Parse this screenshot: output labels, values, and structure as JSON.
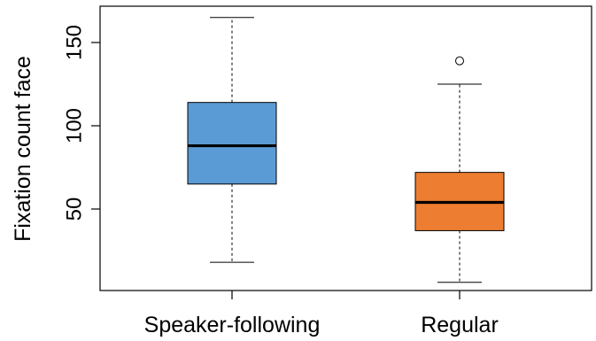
{
  "chart_data": {
    "type": "boxplot",
    "title": "",
    "xlabel": "",
    "ylabel": "Fixation count face",
    "ylim": [
      0,
      172
    ],
    "yticks": [
      50,
      100,
      150
    ],
    "grid": false,
    "categories": [
      "Speaker-following",
      "Regular"
    ],
    "boxes": [
      {
        "category": "Speaker-following",
        "color": "#5b9bd5",
        "whisker_low": 18,
        "q1": 65,
        "median": 88,
        "q3": 114,
        "whisker_high": 165,
        "outliers": []
      },
      {
        "category": "Regular",
        "color": "#ed7d31",
        "whisker_low": 6,
        "q1": 37,
        "median": 54,
        "q3": 72,
        "whisker_high": 125,
        "outliers": [
          139
        ]
      }
    ]
  }
}
